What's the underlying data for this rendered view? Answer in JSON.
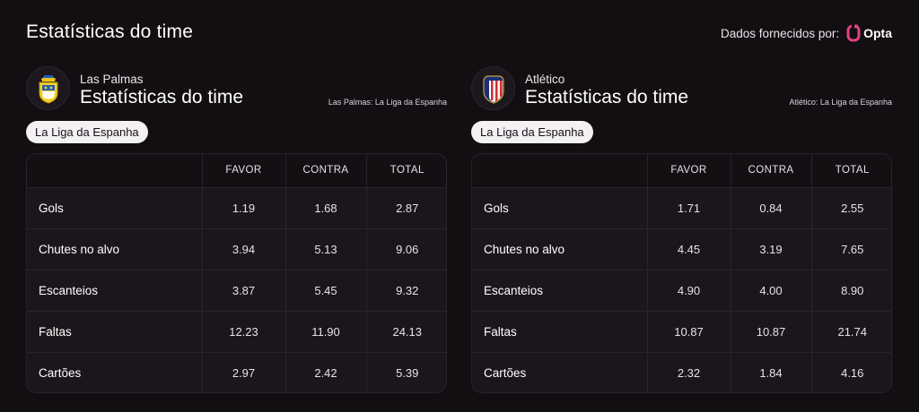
{
  "page_title": "Estatísticas do time",
  "provider": {
    "text": "Dados fornecidos por:",
    "brand": "Opta"
  },
  "columns": [
    "FAVOR",
    "CONTRA",
    "TOTAL"
  ],
  "colors": {
    "background": "#120e12",
    "opta_accent": "#e2407f",
    "pill_bg": "#f3f1f3"
  },
  "teams": [
    {
      "name": "Las Palmas",
      "heading": "Estatísticas do time",
      "competition_note": "Las Palmas: La Liga da Espanha",
      "league_pill": "La Liga da Espanha",
      "crest_icon": "las-palmas-crest-icon",
      "rows": [
        {
          "label": "Gols",
          "favor": "1.19",
          "contra": "1.68",
          "total": "2.87"
        },
        {
          "label": "Chutes no alvo",
          "favor": "3.94",
          "contra": "5.13",
          "total": "9.06"
        },
        {
          "label": "Escanteios",
          "favor": "3.87",
          "contra": "5.45",
          "total": "9.32"
        },
        {
          "label": "Faltas",
          "favor": "12.23",
          "contra": "11.90",
          "total": "24.13"
        },
        {
          "label": "Cartões",
          "favor": "2.97",
          "contra": "2.42",
          "total": "5.39"
        }
      ]
    },
    {
      "name": "Atlético",
      "heading": "Estatísticas do time",
      "competition_note": "Atlético: La Liga da Espanha",
      "league_pill": "La Liga da Espanha",
      "crest_icon": "atletico-crest-icon",
      "rows": [
        {
          "label": "Gols",
          "favor": "1.71",
          "contra": "0.84",
          "total": "2.55"
        },
        {
          "label": "Chutes no alvo",
          "favor": "4.45",
          "contra": "3.19",
          "total": "7.65"
        },
        {
          "label": "Escanteios",
          "favor": "4.90",
          "contra": "4.00",
          "total": "8.90"
        },
        {
          "label": "Faltas",
          "favor": "10.87",
          "contra": "10.87",
          "total": "21.74"
        },
        {
          "label": "Cartões",
          "favor": "2.32",
          "contra": "1.84",
          "total": "4.16"
        }
      ]
    }
  ]
}
